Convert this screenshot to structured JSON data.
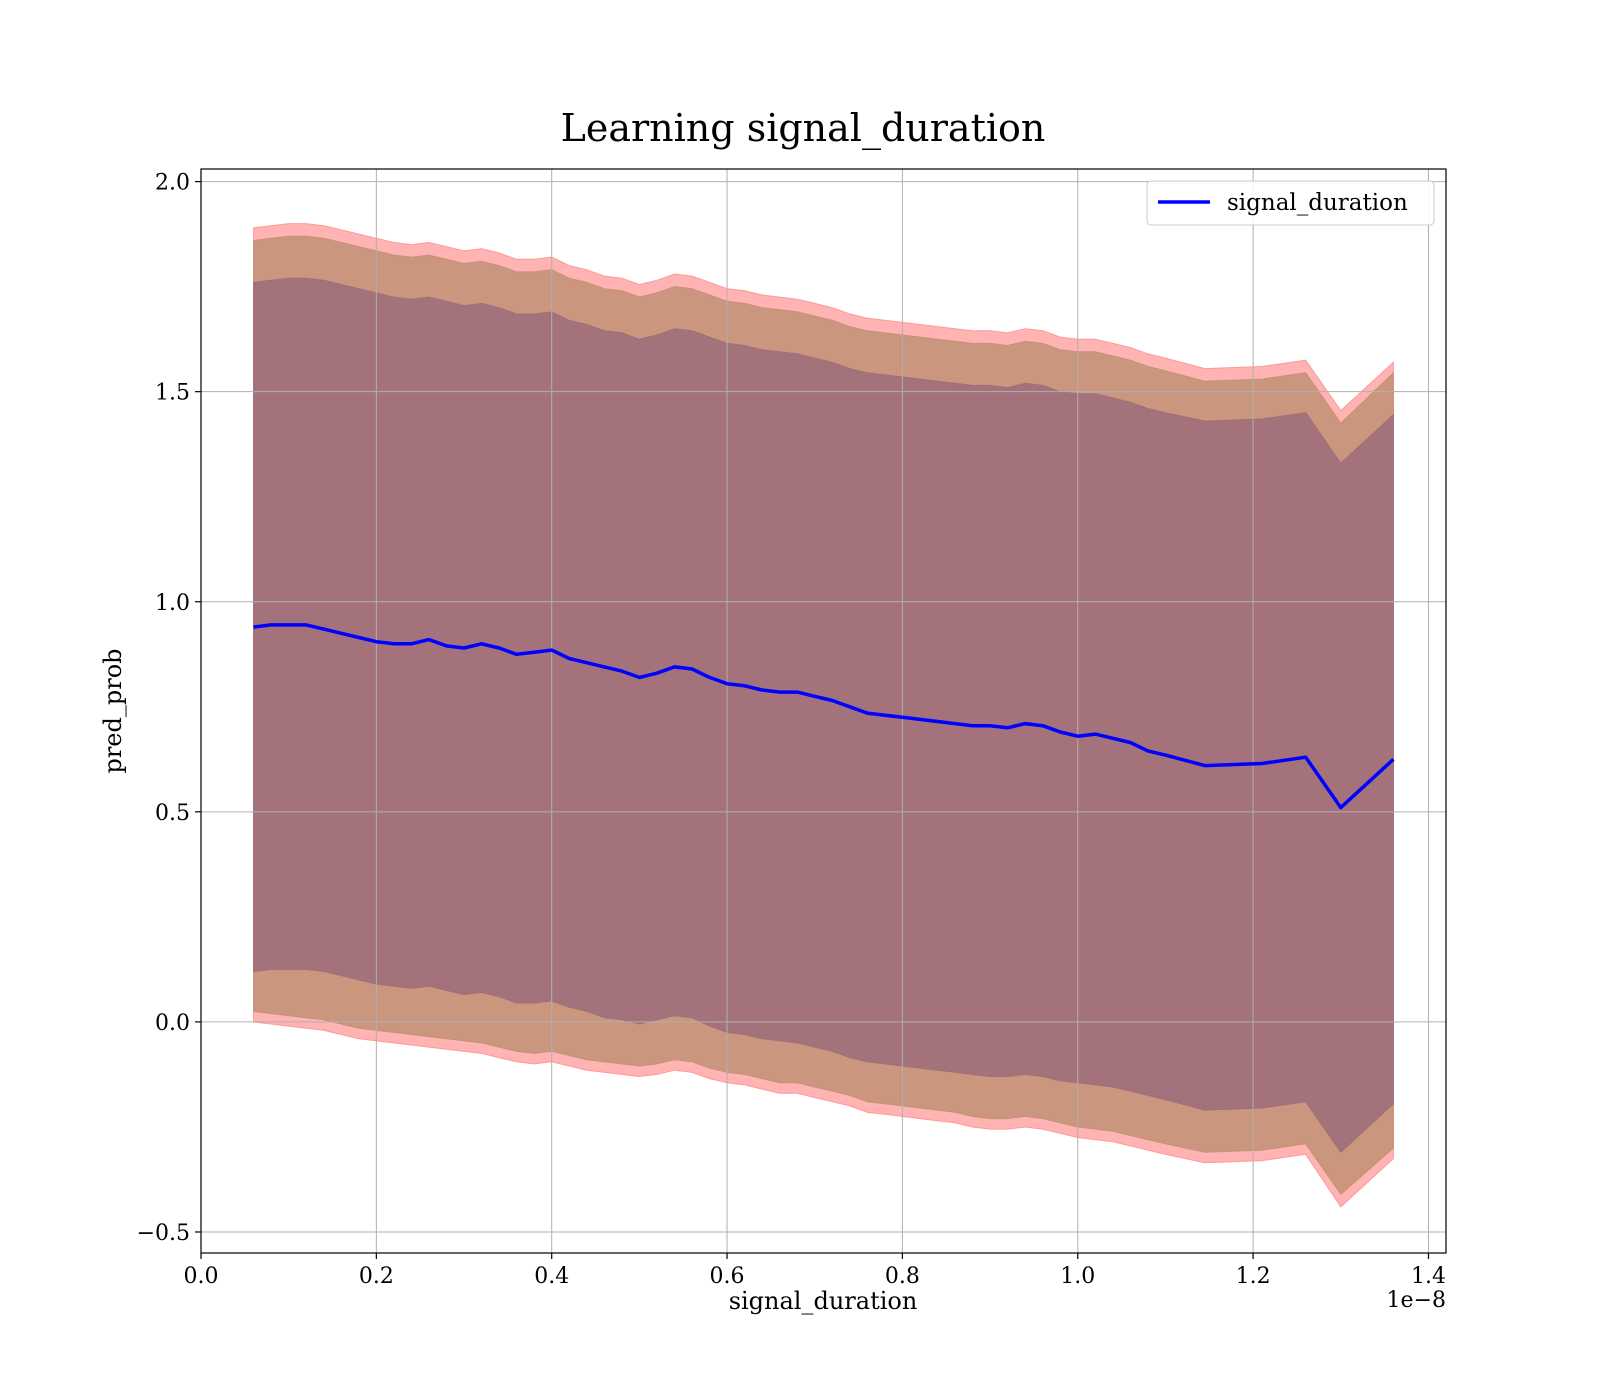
{
  "chart_data": {
    "type": "line",
    "title": "Learning signal_duration",
    "xlabel": "signal_duration",
    "ylabel": "pred_prob",
    "x_offset_label": "1e−8",
    "xlim": [
      0.0,
      1.42
    ],
    "ylim": [
      -0.55,
      2.03
    ],
    "x_ticks": [
      0.0,
      0.2,
      0.4,
      0.6,
      0.8,
      1.0,
      1.2,
      1.4
    ],
    "x_tick_labels": [
      "0.0",
      "0.2",
      "0.4",
      "0.6",
      "0.8",
      "1.0",
      "1.2",
      "1.4"
    ],
    "y_ticks": [
      -0.5,
      0.0,
      0.5,
      1.0,
      1.5,
      2.0
    ],
    "y_tick_labels": [
      "−0.5",
      "0.0",
      "0.5",
      "1.0",
      "1.5",
      "2.0"
    ],
    "grid": true,
    "legend_position": "top-right",
    "colors": {
      "line": "#0000ff",
      "band_outer": "#ff9999",
      "band_middle": "#c59278",
      "band_inner": "#a0707a",
      "grid": "#b0b0b0"
    },
    "x": [
      0.06,
      0.08,
      0.1,
      0.12,
      0.14,
      0.16,
      0.18,
      0.2,
      0.22,
      0.24,
      0.26,
      0.28,
      0.3,
      0.32,
      0.34,
      0.36,
      0.38,
      0.4,
      0.42,
      0.44,
      0.46,
      0.48,
      0.5,
      0.52,
      0.54,
      0.56,
      0.58,
      0.6,
      0.62,
      0.64,
      0.66,
      0.68,
      0.7,
      0.72,
      0.74,
      0.76,
      0.78,
      0.8,
      0.82,
      0.84,
      0.86,
      0.88,
      0.9,
      0.92,
      0.94,
      0.96,
      0.98,
      1.0,
      1.02,
      1.04,
      1.06,
      1.08,
      1.1,
      1.145,
      1.21,
      1.26,
      1.3,
      1.36
    ],
    "series": [
      {
        "name": "signal_duration",
        "values": [
          0.94,
          0.945,
          0.945,
          0.945,
          0.935,
          0.925,
          0.915,
          0.905,
          0.9,
          0.9,
          0.91,
          0.895,
          0.89,
          0.9,
          0.89,
          0.875,
          0.88,
          0.885,
          0.865,
          0.855,
          0.845,
          0.835,
          0.82,
          0.83,
          0.845,
          0.84,
          0.82,
          0.805,
          0.8,
          0.79,
          0.785,
          0.785,
          0.775,
          0.765,
          0.75,
          0.735,
          0.73,
          0.725,
          0.72,
          0.715,
          0.71,
          0.705,
          0.705,
          0.7,
          0.71,
          0.705,
          0.69,
          0.68,
          0.685,
          0.675,
          0.665,
          0.645,
          0.635,
          0.61,
          0.615,
          0.63,
          0.51,
          0.625
        ]
      }
    ],
    "bands": [
      {
        "level": "outer",
        "lower": [
          0.0,
          -0.005,
          -0.01,
          -0.015,
          -0.02,
          -0.03,
          -0.04,
          -0.045,
          -0.05,
          -0.055,
          -0.06,
          -0.065,
          -0.07,
          -0.075,
          -0.085,
          -0.095,
          -0.1,
          -0.095,
          -0.105,
          -0.115,
          -0.12,
          -0.125,
          -0.13,
          -0.125,
          -0.115,
          -0.12,
          -0.135,
          -0.145,
          -0.15,
          -0.16,
          -0.17,
          -0.17,
          -0.18,
          -0.19,
          -0.2,
          -0.215,
          -0.22,
          -0.225,
          -0.23,
          -0.235,
          -0.24,
          -0.25,
          -0.255,
          -0.255,
          -0.25,
          -0.255,
          -0.265,
          -0.275,
          -0.28,
          -0.285,
          -0.295,
          -0.305,
          -0.315,
          -0.335,
          -0.33,
          -0.315,
          -0.44,
          -0.325
        ],
        "upper": [
          1.89,
          1.895,
          1.9,
          1.9,
          1.895,
          1.885,
          1.875,
          1.865,
          1.855,
          1.85,
          1.855,
          1.845,
          1.835,
          1.84,
          1.83,
          1.815,
          1.815,
          1.82,
          1.8,
          1.79,
          1.775,
          1.77,
          1.755,
          1.765,
          1.78,
          1.775,
          1.76,
          1.745,
          1.74,
          1.73,
          1.725,
          1.72,
          1.71,
          1.7,
          1.685,
          1.675,
          1.67,
          1.665,
          1.66,
          1.655,
          1.65,
          1.645,
          1.645,
          1.64,
          1.65,
          1.645,
          1.63,
          1.625,
          1.625,
          1.615,
          1.605,
          1.59,
          1.58,
          1.555,
          1.56,
          1.575,
          1.455,
          1.57
        ]
      },
      {
        "level": "middle",
        "lower": [
          0.025,
          0.02,
          0.015,
          0.01,
          0.005,
          -0.005,
          -0.015,
          -0.02,
          -0.025,
          -0.03,
          -0.035,
          -0.04,
          -0.045,
          -0.05,
          -0.06,
          -0.07,
          -0.075,
          -0.07,
          -0.08,
          -0.09,
          -0.095,
          -0.1,
          -0.105,
          -0.1,
          -0.09,
          -0.095,
          -0.11,
          -0.12,
          -0.125,
          -0.135,
          -0.145,
          -0.145,
          -0.155,
          -0.165,
          -0.175,
          -0.19,
          -0.195,
          -0.2,
          -0.205,
          -0.21,
          -0.215,
          -0.225,
          -0.23,
          -0.23,
          -0.225,
          -0.23,
          -0.24,
          -0.25,
          -0.255,
          -0.26,
          -0.27,
          -0.28,
          -0.29,
          -0.31,
          -0.305,
          -0.29,
          -0.41,
          -0.3
        ],
        "upper": [
          1.86,
          1.865,
          1.87,
          1.87,
          1.865,
          1.855,
          1.845,
          1.835,
          1.825,
          1.82,
          1.825,
          1.815,
          1.805,
          1.81,
          1.8,
          1.785,
          1.785,
          1.79,
          1.77,
          1.76,
          1.745,
          1.74,
          1.725,
          1.735,
          1.75,
          1.745,
          1.73,
          1.715,
          1.71,
          1.7,
          1.695,
          1.69,
          1.68,
          1.67,
          1.655,
          1.645,
          1.64,
          1.635,
          1.63,
          1.625,
          1.62,
          1.615,
          1.615,
          1.61,
          1.62,
          1.615,
          1.6,
          1.595,
          1.595,
          1.585,
          1.575,
          1.56,
          1.55,
          1.525,
          1.53,
          1.545,
          1.425,
          1.545
        ]
      },
      {
        "level": "inner",
        "lower": [
          0.12,
          0.125,
          0.125,
          0.125,
          0.12,
          0.11,
          0.1,
          0.09,
          0.085,
          0.08,
          0.085,
          0.075,
          0.065,
          0.07,
          0.06,
          0.045,
          0.045,
          0.05,
          0.035,
          0.025,
          0.01,
          0.005,
          -0.005,
          0.005,
          0.015,
          0.01,
          -0.01,
          -0.025,
          -0.03,
          -0.04,
          -0.045,
          -0.05,
          -0.06,
          -0.07,
          -0.085,
          -0.095,
          -0.1,
          -0.105,
          -0.11,
          -0.115,
          -0.12,
          -0.125,
          -0.13,
          -0.13,
          -0.125,
          -0.13,
          -0.14,
          -0.145,
          -0.15,
          -0.155,
          -0.165,
          -0.175,
          -0.185,
          -0.21,
          -0.205,
          -0.19,
          -0.31,
          -0.195
        ],
        "upper": [
          1.76,
          1.765,
          1.77,
          1.77,
          1.765,
          1.755,
          1.745,
          1.735,
          1.725,
          1.72,
          1.725,
          1.715,
          1.705,
          1.71,
          1.7,
          1.685,
          1.685,
          1.69,
          1.67,
          1.66,
          1.645,
          1.64,
          1.625,
          1.635,
          1.65,
          1.645,
          1.63,
          1.615,
          1.61,
          1.6,
          1.595,
          1.59,
          1.58,
          1.57,
          1.555,
          1.545,
          1.54,
          1.535,
          1.53,
          1.525,
          1.52,
          1.515,
          1.515,
          1.51,
          1.52,
          1.515,
          1.5,
          1.495,
          1.495,
          1.485,
          1.475,
          1.46,
          1.45,
          1.43,
          1.435,
          1.45,
          1.33,
          1.445
        ]
      }
    ]
  }
}
